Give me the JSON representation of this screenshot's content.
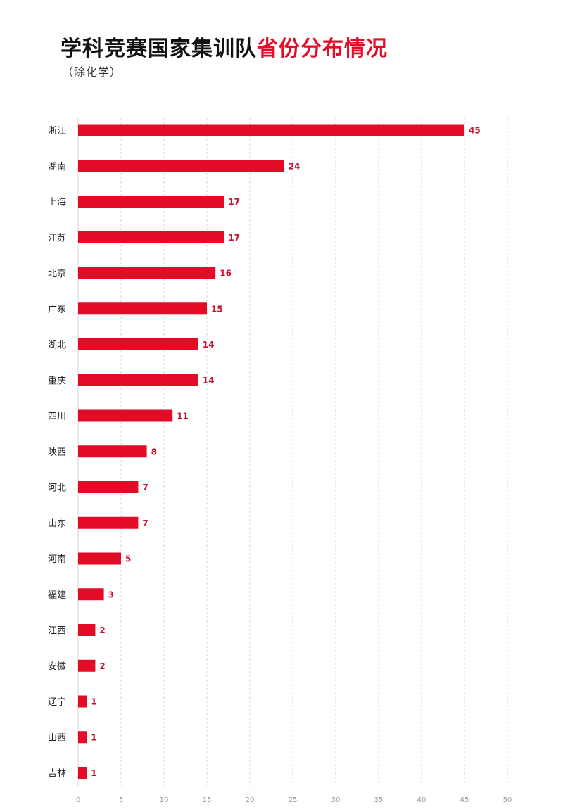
{
  "chart_data": {
    "type": "bar",
    "orientation": "horizontal",
    "title": "学科竞赛国家集训队",
    "title_highlight": "省份分布情况",
    "subtitle": "（除化学）",
    "categories": [
      "浙江",
      "湖南",
      "上海",
      "江苏",
      "北京",
      "广东",
      "湖北",
      "重庆",
      "四川",
      "陕西",
      "河北",
      "山东",
      "河南",
      "福建",
      "江西",
      "安徽",
      "辽宁",
      "山西",
      "吉林"
    ],
    "values": [
      45,
      24,
      17,
      17,
      16,
      15,
      14,
      14,
      11,
      8,
      7,
      7,
      5,
      3,
      2,
      2,
      1,
      1,
      1
    ],
    "xlim": [
      0,
      50
    ],
    "xticks": [
      0,
      5,
      10,
      15,
      20,
      25,
      30,
      35,
      40,
      45,
      50
    ],
    "grid": true,
    "colors": {
      "bar": "#e30b26",
      "value_label": "#c8102e",
      "title_accent": "#e30b26"
    }
  }
}
